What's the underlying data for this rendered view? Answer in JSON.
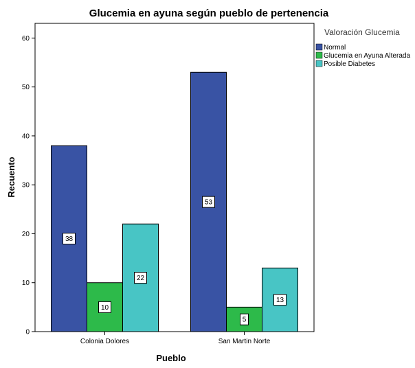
{
  "chart_data": {
    "type": "bar",
    "title": "Glucemia en ayuna según pueblo de pertenencia",
    "xlabel": "Pueblo",
    "ylabel": "Recuento",
    "categories": [
      "Colonia Dolores",
      "San Martin Norte"
    ],
    "ylim": [
      0,
      63
    ],
    "yticks": [
      0,
      10,
      20,
      30,
      40,
      50,
      60
    ],
    "legend_title": "Valoración Glucemia",
    "legend_position": "right",
    "grid": false,
    "series": [
      {
        "name": "Normal",
        "values": [
          38,
          53
        ],
        "color": "#3953a4"
      },
      {
        "name": "Glucemia en Ayuna Alterada",
        "values": [
          10,
          5
        ],
        "color": "#2dba4a"
      },
      {
        "name": "Posible Diabetes",
        "values": [
          22,
          13
        ],
        "color": "#48c5c5"
      }
    ]
  }
}
